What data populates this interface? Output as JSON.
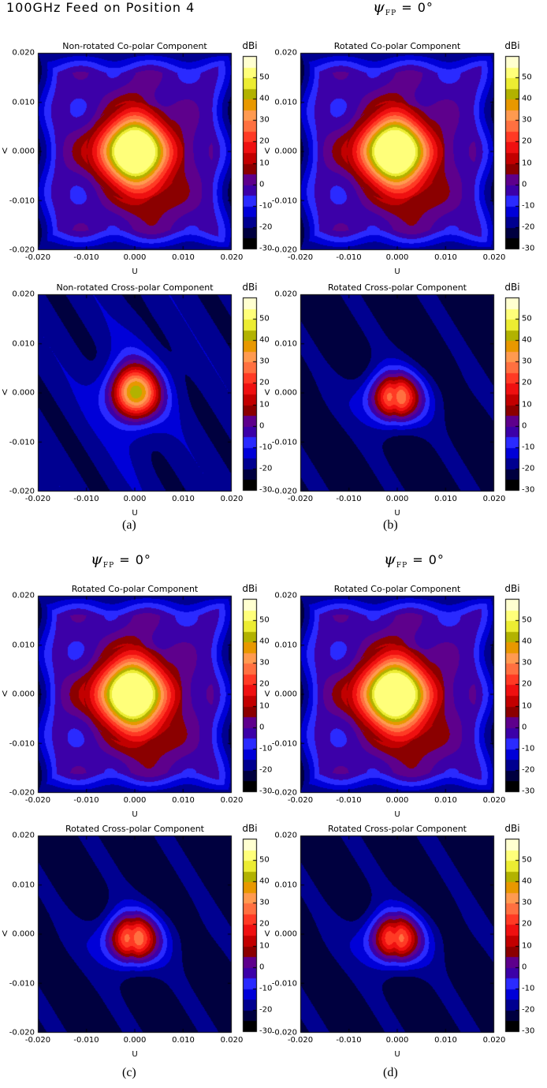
{
  "headings": {
    "top_left": "100GHz Feed on Position 4",
    "psi_symbol": "ψ",
    "psi_subscript": "FP",
    "psi_value": "= 0°"
  },
  "panel_labels": [
    "(a)",
    "(b)",
    "(c)",
    "(d)"
  ],
  "chart_data": [
    {
      "id": "a-co",
      "type": "heatmap",
      "panel": "(a)",
      "title": "Non-rotated Co-polar Component",
      "xlabel": "U",
      "ylabel": "V",
      "colorbar_label": "dBi",
      "xlim": [
        -0.02,
        0.02
      ],
      "ylim": [
        -0.02,
        0.02
      ],
      "peak_dBi": 50,
      "peak_center": [
        0.0,
        0.0
      ],
      "background_dBi": -3
    },
    {
      "id": "b-co",
      "type": "heatmap",
      "panel": "(b)",
      "title": "Rotated Co-polar Component",
      "xlabel": "U",
      "ylabel": "V",
      "colorbar_label": "dBi",
      "xlim": [
        -0.02,
        0.02
      ],
      "ylim": [
        -0.02,
        0.02
      ],
      "peak_dBi": 50,
      "peak_center": [
        -0.0005,
        0.0
      ],
      "background_dBi": -3
    },
    {
      "id": "a-x",
      "type": "heatmap",
      "panel": "(a)",
      "title": "Non-rotated Cross-polar Component",
      "xlabel": "U",
      "ylabel": "V",
      "colorbar_label": "dBi",
      "xlim": [
        -0.02,
        0.02
      ],
      "ylim": [
        -0.02,
        0.02
      ],
      "peak_dBi": 37,
      "peak_center": [
        0.0,
        0.0
      ],
      "background_dBi": -18
    },
    {
      "id": "b-x",
      "type": "heatmap",
      "panel": "(b)",
      "title": "Rotated Cross-polar Component",
      "xlabel": "U",
      "ylabel": "V",
      "colorbar_label": "dBi",
      "xlim": [
        -0.02,
        0.02
      ],
      "ylim": [
        -0.02,
        0.02
      ],
      "peak_dBi": 25,
      "peak_center": [
        -0.0005,
        -0.001
      ],
      "background_dBi": -22
    },
    {
      "id": "c-co",
      "type": "heatmap",
      "panel": "(c)",
      "title": "Rotated Co-polar Component",
      "xlabel": "U",
      "ylabel": "V",
      "colorbar_label": "dBi",
      "xlim": [
        -0.02,
        0.02
      ],
      "ylim": [
        -0.02,
        0.02
      ],
      "peak_dBi": 50,
      "peak_center": [
        -0.0005,
        0.0
      ],
      "background_dBi": -3
    },
    {
      "id": "d-co",
      "type": "heatmap",
      "panel": "(d)",
      "title": "Rotated Co-polar Component",
      "xlabel": "U",
      "ylabel": "V",
      "colorbar_label": "dBi",
      "xlim": [
        -0.02,
        0.02
      ],
      "ylim": [
        -0.02,
        0.02
      ],
      "peak_dBi": 50,
      "peak_center": [
        -0.0005,
        0.0
      ],
      "background_dBi": -3
    },
    {
      "id": "c-x",
      "type": "heatmap",
      "panel": "(c)",
      "title": "Rotated Cross-polar Component",
      "xlabel": "U",
      "ylabel": "V",
      "colorbar_label": "dBi",
      "xlim": [
        -0.02,
        0.02
      ],
      "ylim": [
        -0.02,
        0.02
      ],
      "peak_dBi": 25,
      "peak_center": [
        -0.0005,
        -0.001
      ],
      "background_dBi": -22
    },
    {
      "id": "d-x",
      "type": "heatmap",
      "panel": "(d)",
      "title": "Rotated Cross-polar Component",
      "xlabel": "U",
      "ylabel": "V",
      "colorbar_label": "dBi",
      "xlim": [
        -0.02,
        0.02
      ],
      "ylim": [
        -0.02,
        0.02
      ],
      "peak_dBi": 22,
      "peak_center": [
        -0.0005,
        -0.001
      ],
      "background_dBi": -22
    }
  ],
  "axis_ticks": {
    "x": [
      "-0.020",
      "-0.010",
      "0.000",
      "0.010",
      "0.020"
    ],
    "y": [
      "0.020",
      "0.010",
      "0.000",
      "-0.010",
      "-0.020"
    ]
  },
  "colorbar": {
    "ticks": [
      "50",
      "40",
      "30",
      "20",
      "10",
      "0",
      "-10",
      "-20",
      "-30"
    ],
    "levels": [
      -30,
      -25,
      -20,
      -15,
      -10,
      -5,
      0,
      5,
      10,
      15,
      20,
      25,
      30,
      35,
      40,
      45,
      50,
      55
    ],
    "colors": [
      "#000000",
      "#00003f",
      "#000090",
      "#0000d8",
      "#2a2aff",
      "#3c00a8",
      "#5e008c",
      "#8b0000",
      "#c20000",
      "#ef1010",
      "#ff3a24",
      "#ff7040",
      "#ff9a50",
      "#e89800",
      "#b2b200",
      "#ecec32",
      "#ffff7a",
      "#ffffd0"
    ]
  }
}
